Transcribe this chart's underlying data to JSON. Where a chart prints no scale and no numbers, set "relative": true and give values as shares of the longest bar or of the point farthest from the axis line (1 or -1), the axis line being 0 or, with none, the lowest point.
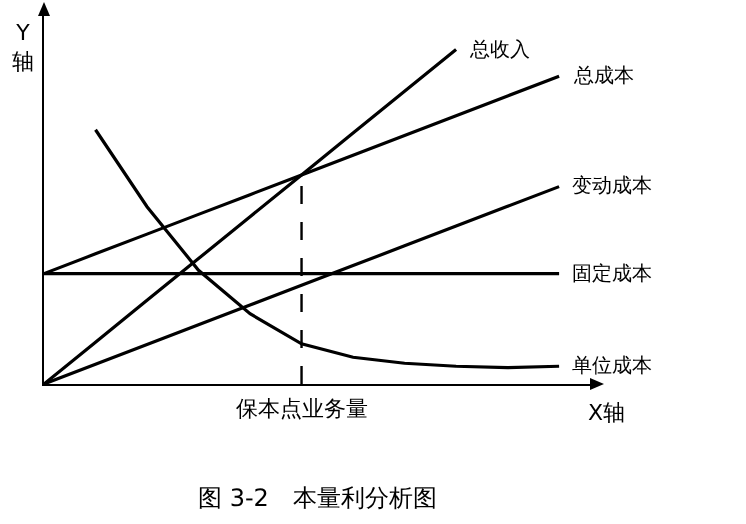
{
  "chart_data": {
    "type": "line",
    "title": "图 3-2　本量利分析图",
    "xlabel": "X轴",
    "ylabel": "Y轴",
    "relative": true,
    "legend": false,
    "grid": false,
    "marker": "none",
    "categories": [
      null,
      null,
      null,
      null,
      null,
      null,
      null,
      null,
      null,
      null,
      null
    ],
    "series": [
      {
        "name": "总收入",
        "color": "#000000",
        "values": [
          0,
          0.125,
          0.25,
          0.375,
          0.5,
          0.625,
          0.75,
          0.875,
          1,
          null,
          null
        ]
      },
      {
        "name": "总成本",
        "color": "#000000",
        "values": [
          0.33,
          0.389,
          0.448,
          0.507,
          0.566,
          0.625,
          0.684,
          0.743,
          0.802,
          0.861,
          0.92
        ]
      },
      {
        "name": "变动成本",
        "color": "#000000",
        "values": [
          0,
          0.059,
          0.118,
          0.177,
          0.236,
          0.295,
          0.354,
          0.413,
          0.472,
          0.531,
          0.59
        ]
      },
      {
        "name": "固定成本",
        "color": "#000000",
        "values": [
          0.33,
          0.33,
          0.33,
          0.33,
          0.33,
          0.33,
          0.33,
          0.33,
          0.33,
          0.33,
          0.33
        ]
      },
      {
        "name": "单位成本",
        "color": "#000000",
        "values": [
          null,
          0.76,
          0.53,
          0.34,
          0.21,
          0.12,
          0.08,
          0.062,
          0.053,
          0.049,
          0.053
        ]
      }
    ],
    "annotations": [
      "保本点业务量"
    ]
  }
}
